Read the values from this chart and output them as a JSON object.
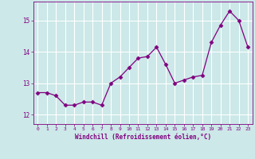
{
  "x": [
    0,
    1,
    2,
    3,
    4,
    5,
    6,
    7,
    8,
    9,
    10,
    11,
    12,
    13,
    14,
    15,
    16,
    17,
    18,
    19,
    20,
    21,
    22,
    23
  ],
  "y": [
    12.7,
    12.7,
    12.6,
    12.3,
    12.3,
    12.4,
    12.4,
    12.3,
    13.0,
    13.2,
    13.5,
    13.8,
    13.85,
    14.15,
    13.6,
    13.0,
    13.1,
    13.2,
    13.25,
    14.3,
    14.85,
    15.3,
    15.0,
    14.15
  ],
  "line_color": "#800080",
  "marker": "D",
  "marker_size": 2.5,
  "bg_color": "#cce8e8",
  "grid_color": "#ffffff",
  "xlabel": "Windchill (Refroidissement éolien,°C)",
  "yticks": [
    12,
    13,
    14,
    15
  ],
  "xticks": [
    0,
    1,
    2,
    3,
    4,
    5,
    6,
    7,
    8,
    9,
    10,
    11,
    12,
    13,
    14,
    15,
    16,
    17,
    18,
    19,
    20,
    21,
    22,
    23
  ],
  "ylim": [
    11.7,
    15.6
  ],
  "xlim": [
    -0.5,
    23.5
  ],
  "tick_color": "#800080",
  "label_color": "#800080",
  "spine_color": "#800080"
}
